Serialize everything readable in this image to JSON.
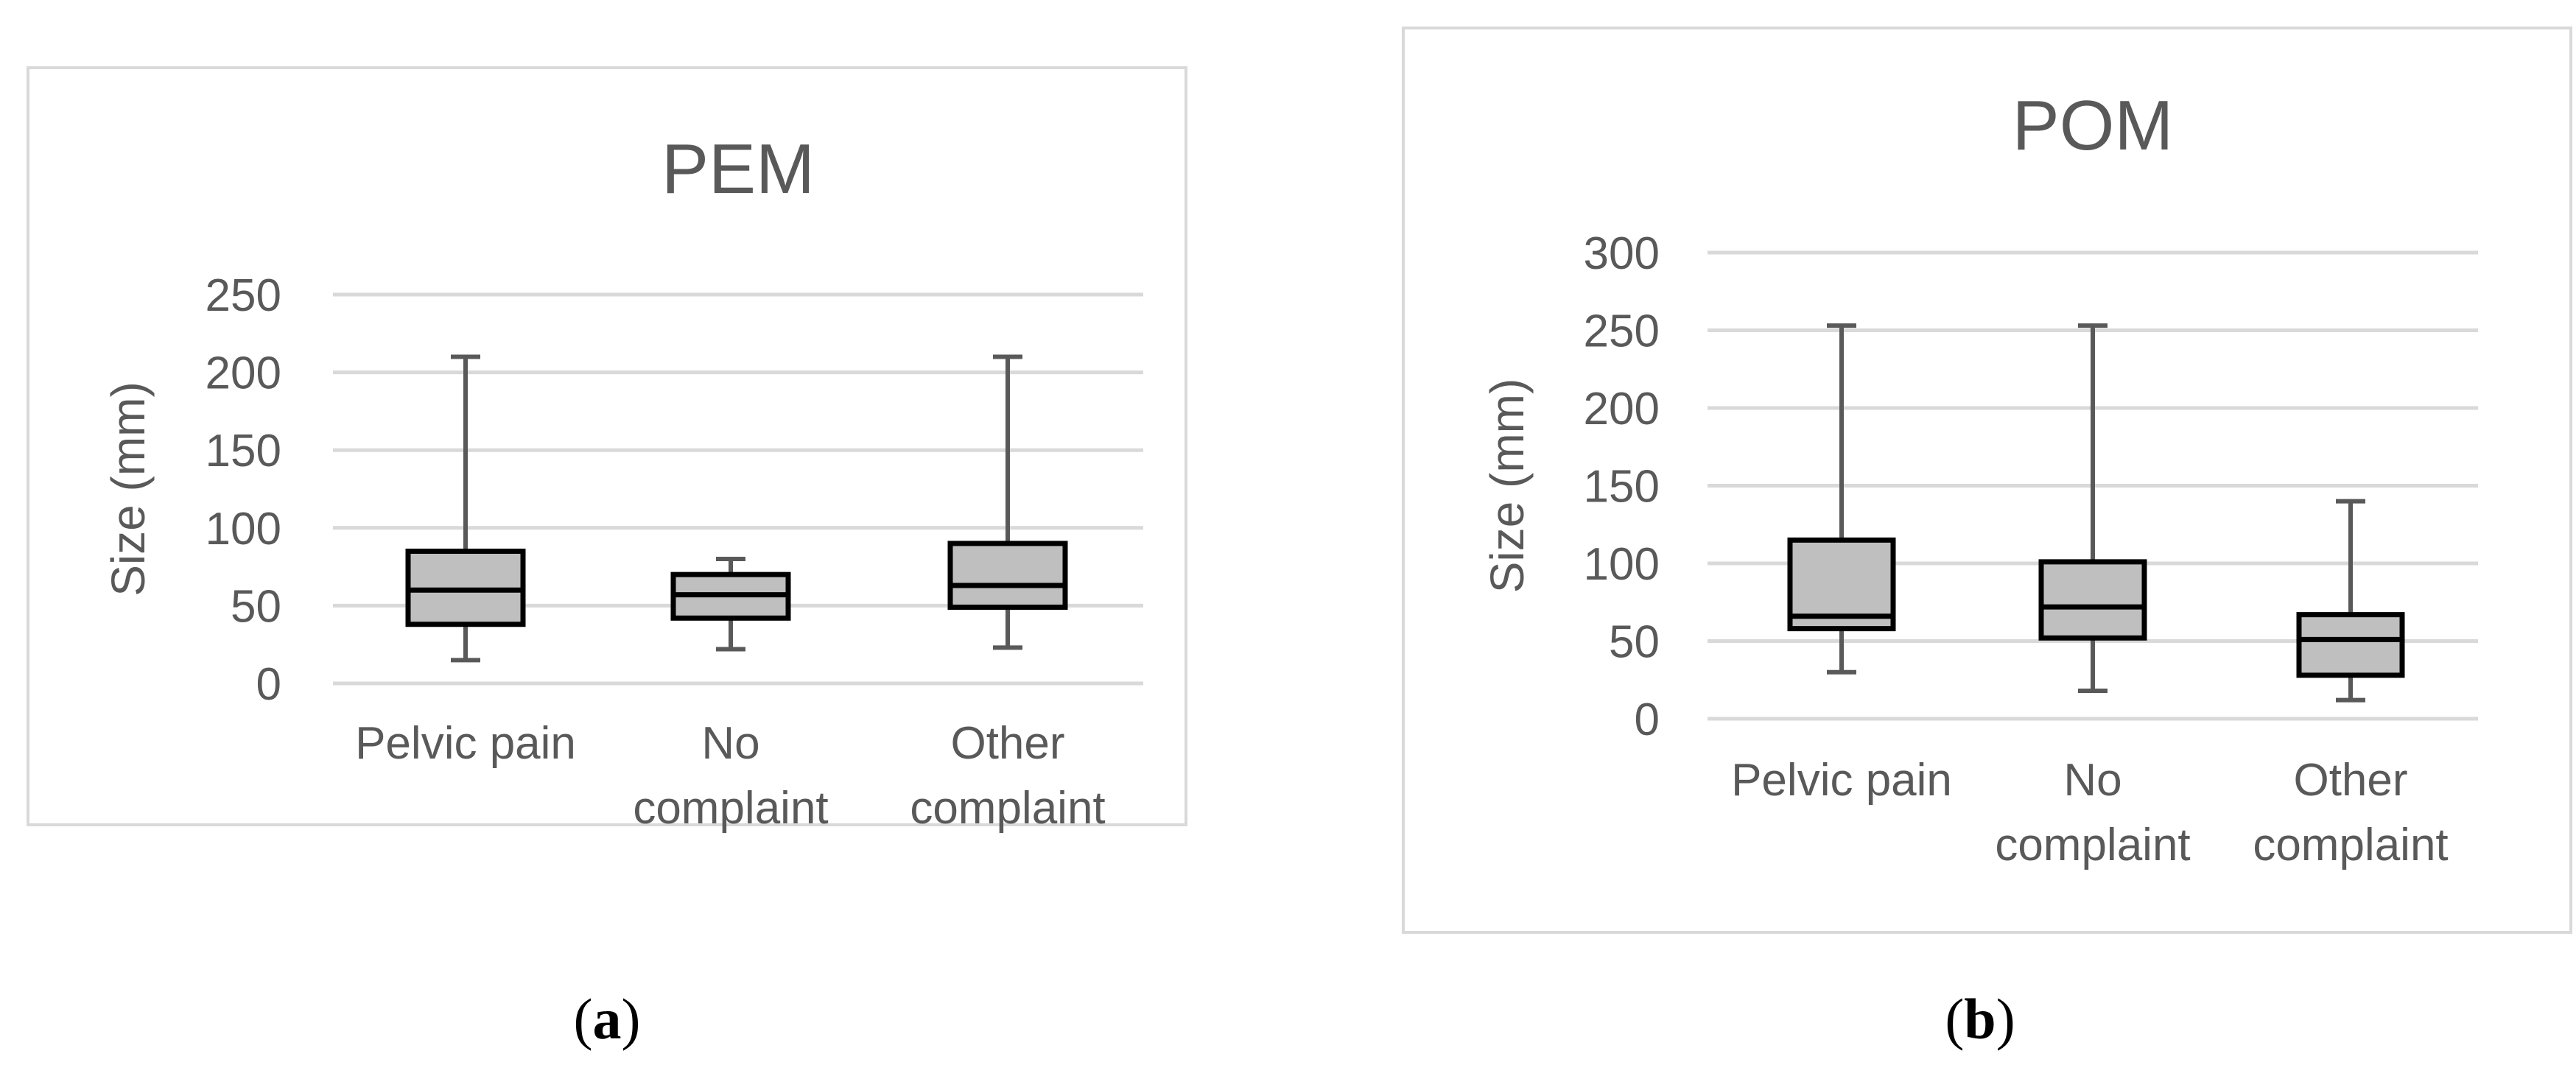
{
  "chart_data": [
    {
      "type": "box",
      "title": "PEM",
      "panel_label": "a",
      "xlabel": "",
      "ylabel": "Size (mm)",
      "ylim": [
        0,
        250
      ],
      "yticks": [
        0,
        50,
        100,
        150,
        200,
        250
      ],
      "grid": true,
      "categories": [
        [
          "Pelvic pain"
        ],
        [
          "No",
          "complaint"
        ],
        [
          "Other",
          "complaint"
        ]
      ],
      "series": [
        {
          "min": 15,
          "q1": 38,
          "median": 60,
          "q3": 85,
          "max": 210
        },
        {
          "min": 22,
          "q1": 42,
          "median": 57,
          "q3": 70,
          "max": 80
        },
        {
          "min": 23,
          "q1": 49,
          "median": 63,
          "q3": 90,
          "max": 210
        }
      ]
    },
    {
      "type": "box",
      "title": "POM",
      "panel_label": "b",
      "xlabel": "",
      "ylabel": "Size (mm)",
      "ylim": [
        0,
        300
      ],
      "yticks": [
        0,
        50,
        100,
        150,
        200,
        250,
        300
      ],
      "grid": true,
      "categories": [
        [
          "Pelvic pain"
        ],
        [
          "No",
          "complaint"
        ],
        [
          "Other",
          "complaint"
        ]
      ],
      "series": [
        {
          "min": 30,
          "q1": 58,
          "median": 66,
          "q3": 115,
          "max": 253
        },
        {
          "min": 18,
          "q1": 52,
          "median": 72,
          "q3": 101,
          "max": 253
        },
        {
          "min": 12,
          "q1": 28,
          "median": 51,
          "q3": 67,
          "max": 140
        }
      ]
    }
  ],
  "colors": {
    "box_fill": "#bfbfbf",
    "box_stroke": "#000000",
    "whisker": "#595959",
    "grid": "#d9d9d9",
    "text": "#595959",
    "frame": "#d9d9d9",
    "caption": "#000000"
  }
}
